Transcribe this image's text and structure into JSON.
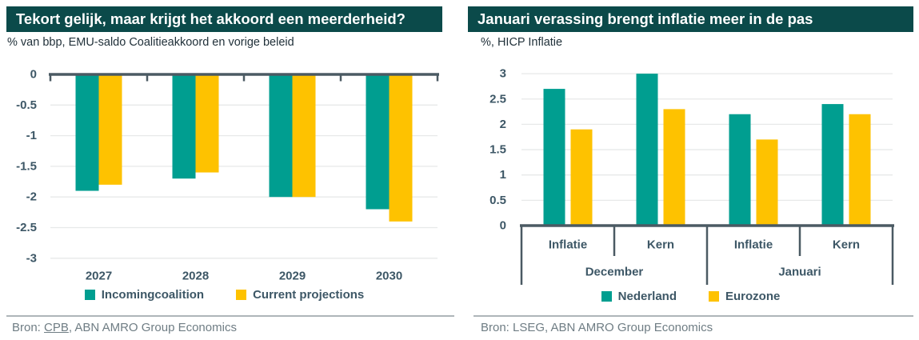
{
  "theme": {
    "title_bar_bg": "#0b4a4a",
    "title_text": "#ffffff",
    "axis_text": "#3d5766",
    "axis_line": "#4b5a63",
    "gridline": "#e7e9e9",
    "source_text": "#6f7d84",
    "teal": "#009e90",
    "yellow": "#fec200"
  },
  "chart_data": [
    {
      "type": "bar",
      "title": "Tekort gelijk, maar krijgt het akkoord een meerderheid?",
      "subtitle": "% van bbp, EMU-saldo Coalitieakkoord en vorige beleid",
      "categories": [
        "2027",
        "2028",
        "2029",
        "2030"
      ],
      "series": [
        {
          "name": "Incomingcoalition",
          "color": "#009e90",
          "values": [
            -1.9,
            -1.7,
            -2.0,
            -2.2
          ]
        },
        {
          "name": "Current projections",
          "color": "#fec200",
          "values": [
            -1.8,
            -1.6,
            -2.0,
            -2.4
          ]
        }
      ],
      "ylim": [
        -3,
        0
      ],
      "yticks": [
        0,
        -0.5,
        -1,
        -1.5,
        -2,
        -2.5,
        -3
      ],
      "grid": true,
      "legend_position": "bottom",
      "source_prefix": "Bron: ",
      "source_link": "CPB",
      "source_suffix": ", ABN AMRO Group Economics"
    },
    {
      "type": "bar",
      "title": "Januari verassing brengt inflatie meer in de pas",
      "subtitle": "%, HICP Inflatie",
      "categories": [
        "Inflatie",
        "Kern",
        "Inflatie",
        "Kern"
      ],
      "group_labels": [
        "December",
        "Januari"
      ],
      "series": [
        {
          "name": "Nederland",
          "color": "#009e90",
          "values": [
            2.7,
            3.0,
            2.2,
            2.4
          ]
        },
        {
          "name": "Eurozone",
          "color": "#fec200",
          "values": [
            1.9,
            2.3,
            1.7,
            2.2
          ]
        }
      ],
      "ylim": [
        0,
        3
      ],
      "yticks": [
        0,
        0.5,
        1,
        1.5,
        2,
        2.5,
        3
      ],
      "grid": true,
      "legend_position": "bottom",
      "source": "Bron: LSEG, ABN AMRO Group Economics"
    }
  ]
}
